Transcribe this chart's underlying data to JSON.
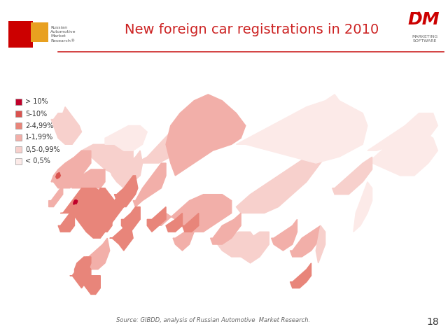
{
  "title": "New foreign car registrations in 2010",
  "title_color": "#CC2222",
  "title_fontsize": 14,
  "source_text": "Source: GIBDD, analysis of Russian Automotive  Market Research.",
  "page_number": "18",
  "background_color": "#FFFFFF",
  "header_line_color": "#CC2222",
  "legend_labels": [
    "> 10%",
    "5-10%",
    "2-4,99%",
    "1-1,99%",
    "0,5-0,99%",
    "< 0,5%"
  ],
  "legend_colors": [
    "#C0002A",
    "#D9534F",
    "#E8857A",
    "#F2AFA9",
    "#F7D0CC",
    "#FCEAE8"
  ],
  "map_bg_color": "#FFFFFF",
  "logo_red": "#CC0000",
  "logo_orange": "#E8A020",
  "map_border_color": "#BBBBBB",
  "region_colors": {
    "Moscow": 0,
    "Moskva": 0,
    "Saint Petersburg": 1,
    "Sankt-Peterburg": 1,
    "Leningrad": 1,
    "Krasnodar": 2,
    "Rostov": 2,
    "Sverdlovsk": 2,
    "Chelyabinsk": 2,
    "Novosibirsk": 2,
    "Samara": 2,
    "Tatarstan": 2,
    "Nizhny Novgorod": 2,
    "Bashkortostan": 2,
    "Perm": 2,
    "Kemerovo": 2,
    "Krasnoyarsk": 3,
    "Irkutsk": 3,
    "Omsk": 3,
    "Volgograd": 3,
    "Saratov": 3,
    "Orenburg": 3,
    "Tyumen": 3,
    "Voronezh": 3,
    "Stavropol": 3,
    "Altai Krai": 3,
    "Primorsky": 2,
    "Khabarovsk": 3,
    "Sakha": 4,
    "Yakutia": 4,
    "Murmansk": 4,
    "Arkhangelsk": 4,
    "Komi": 4,
    "Magadan": 4,
    "Kamchatka": 5,
    "Chukotka": 5,
    "Nenets": 5,
    "Yamalo": 4,
    "Khanty": 3
  }
}
